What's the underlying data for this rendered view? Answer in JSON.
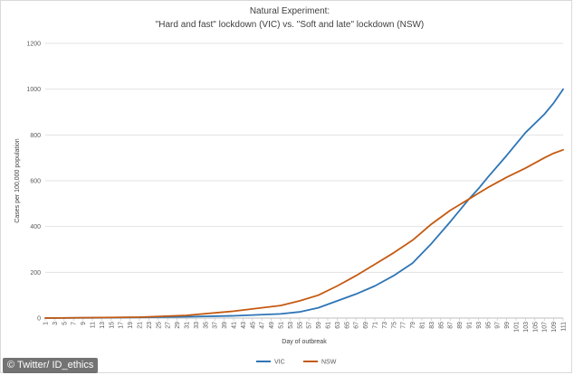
{
  "chart_data": {
    "type": "line",
    "title": "Natural Experiment:",
    "subtitle": "\"Hard and fast\" lockdown (VIC) vs. \"Soft and late\" lockdown (NSW)",
    "xlabel": "Day of outbreak",
    "ylabel": "Cases per 100,000 population",
    "ylim": [
      0,
      1200
    ],
    "yticks": [
      0,
      200,
      400,
      600,
      800,
      1000,
      1200
    ],
    "xlim": [
      1,
      111
    ],
    "xticks_step": 2,
    "grid": "horizontal",
    "legend_position": "bottom",
    "series": [
      {
        "name": "VIC",
        "color": "#2e75b6",
        "x": [
          1,
          11,
          21,
          31,
          41,
          51,
          55,
          59,
          63,
          67,
          71,
          75,
          79,
          83,
          87,
          91,
          93,
          95,
          99,
          103,
          107,
          109,
          111
        ],
        "y": [
          0,
          1,
          3,
          6,
          10,
          18,
          27,
          45,
          75,
          105,
          140,
          185,
          240,
          325,
          420,
          520,
          565,
          615,
          710,
          810,
          890,
          940,
          1000
        ]
      },
      {
        "name": "NSW",
        "color": "#c55a11",
        "x": [
          1,
          11,
          21,
          31,
          41,
          51,
          55,
          59,
          63,
          67,
          71,
          75,
          79,
          83,
          87,
          91,
          93,
          95,
          99,
          103,
          107,
          109,
          111
        ],
        "y": [
          0,
          2,
          4,
          12,
          30,
          55,
          75,
          100,
          140,
          185,
          235,
          285,
          340,
          410,
          470,
          520,
          545,
          570,
          615,
          655,
          700,
          720,
          735
        ]
      }
    ]
  },
  "watermark": "© Twitter/ ID_ethics"
}
